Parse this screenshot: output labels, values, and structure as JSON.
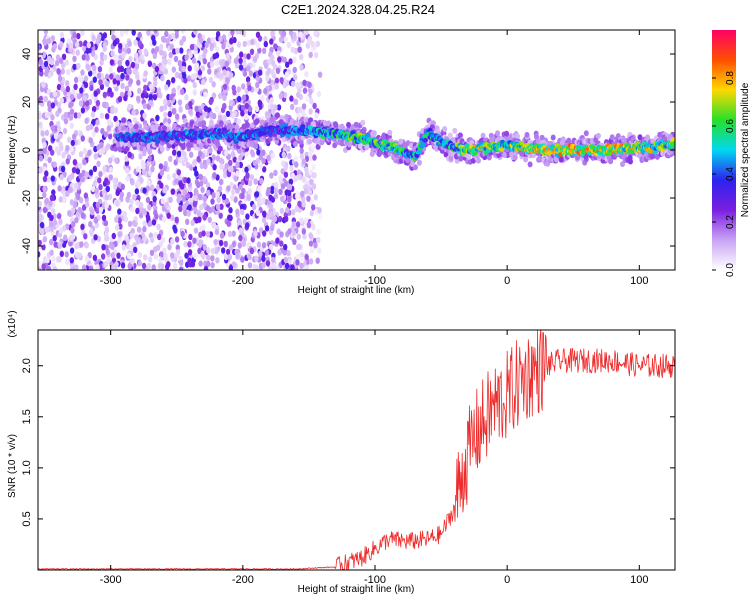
{
  "title": "C2E1.2024.328.04.25.R24",
  "chart_data": [
    {
      "type": "heatmap",
      "xlabel": "Height of straight line (km)",
      "ylabel": "Frequency (Hz)",
      "xlim": [
        -355,
        127
      ],
      "ylim": [
        -50,
        50
      ],
      "xticks": [
        -300,
        -200,
        -100,
        0,
        100
      ],
      "yticks": [
        -40,
        -20,
        0,
        20,
        40
      ],
      "colorbar": {
        "label": "Normalized spectral amplitude",
        "range": [
          0.0,
          1.0
        ],
        "ticks": [
          0.0,
          0.2,
          0.4,
          0.6,
          0.8
        ],
        "colormap": [
          "#ffffff",
          "#c9a3f5",
          "#7a1fe0",
          "#2d23f0",
          "#00d8f0",
          "#27e02a",
          "#ffd800",
          "#ff5000",
          "#ff0066"
        ]
      },
      "ridge": [
        {
          "x": -290,
          "freq": 5,
          "amp": 0.45
        },
        {
          "x": -250,
          "freq": 6,
          "amp": 0.45
        },
        {
          "x": -215,
          "freq": 7,
          "amp": 0.45
        },
        {
          "x": -205,
          "freq": 5,
          "amp": 0.5
        },
        {
          "x": -180,
          "freq": 8,
          "amp": 0.4
        },
        {
          "x": -150,
          "freq": 8,
          "amp": 0.5
        },
        {
          "x": -120,
          "freq": 6,
          "amp": 0.65
        },
        {
          "x": -90,
          "freq": 2,
          "amp": 0.65
        },
        {
          "x": -70,
          "freq": -3,
          "amp": 0.6
        },
        {
          "x": -60,
          "freq": 7,
          "amp": 0.55
        },
        {
          "x": -45,
          "freq": 2,
          "amp": 0.55
        },
        {
          "x": -30,
          "freq": 0,
          "amp": 0.75
        },
        {
          "x": 0,
          "freq": 2,
          "amp": 0.7
        },
        {
          "x": 30,
          "freq": 0,
          "amp": 0.8
        },
        {
          "x": 70,
          "freq": 0,
          "amp": 0.85
        },
        {
          "x": 100,
          "freq": 1,
          "amp": 0.75
        },
        {
          "x": 127,
          "freq": 2,
          "amp": 0.7
        }
      ]
    },
    {
      "type": "line",
      "xlabel": "Height of straight line (km)",
      "ylabel": "SNR (10 * v/v)",
      "multiplier": "(x10⁴)",
      "xlim": [
        -355,
        127
      ],
      "ylim": [
        0,
        2.35
      ],
      "xticks": [
        -300,
        -200,
        -100,
        0,
        100
      ],
      "yticks": [
        0.5,
        1.0,
        1.5,
        2.0
      ],
      "ytick_labels": [
        "0.5",
        "1.0",
        "1.5",
        "2.0"
      ],
      "series": [
        {
          "color": "#ee2b2b",
          "x": [
            -355,
            -300,
            -200,
            -160,
            -130,
            -110,
            -90,
            -75,
            -60,
            -50,
            -40,
            -35,
            -30,
            -25,
            -20,
            -15,
            -10,
            -5,
            0,
            10,
            20,
            30,
            40,
            60,
            80,
            100,
            110,
            127
          ],
          "y": [
            0.01,
            0.01,
            0.01,
            0.01,
            0.03,
            0.12,
            0.3,
            0.28,
            0.3,
            0.35,
            0.6,
            0.9,
            1.1,
            1.3,
            1.4,
            1.5,
            1.6,
            1.65,
            1.7,
            1.85,
            1.95,
            2.0,
            2.05,
            2.05,
            2.05,
            2.0,
            2.0,
            2.0
          ]
        }
      ]
    }
  ]
}
